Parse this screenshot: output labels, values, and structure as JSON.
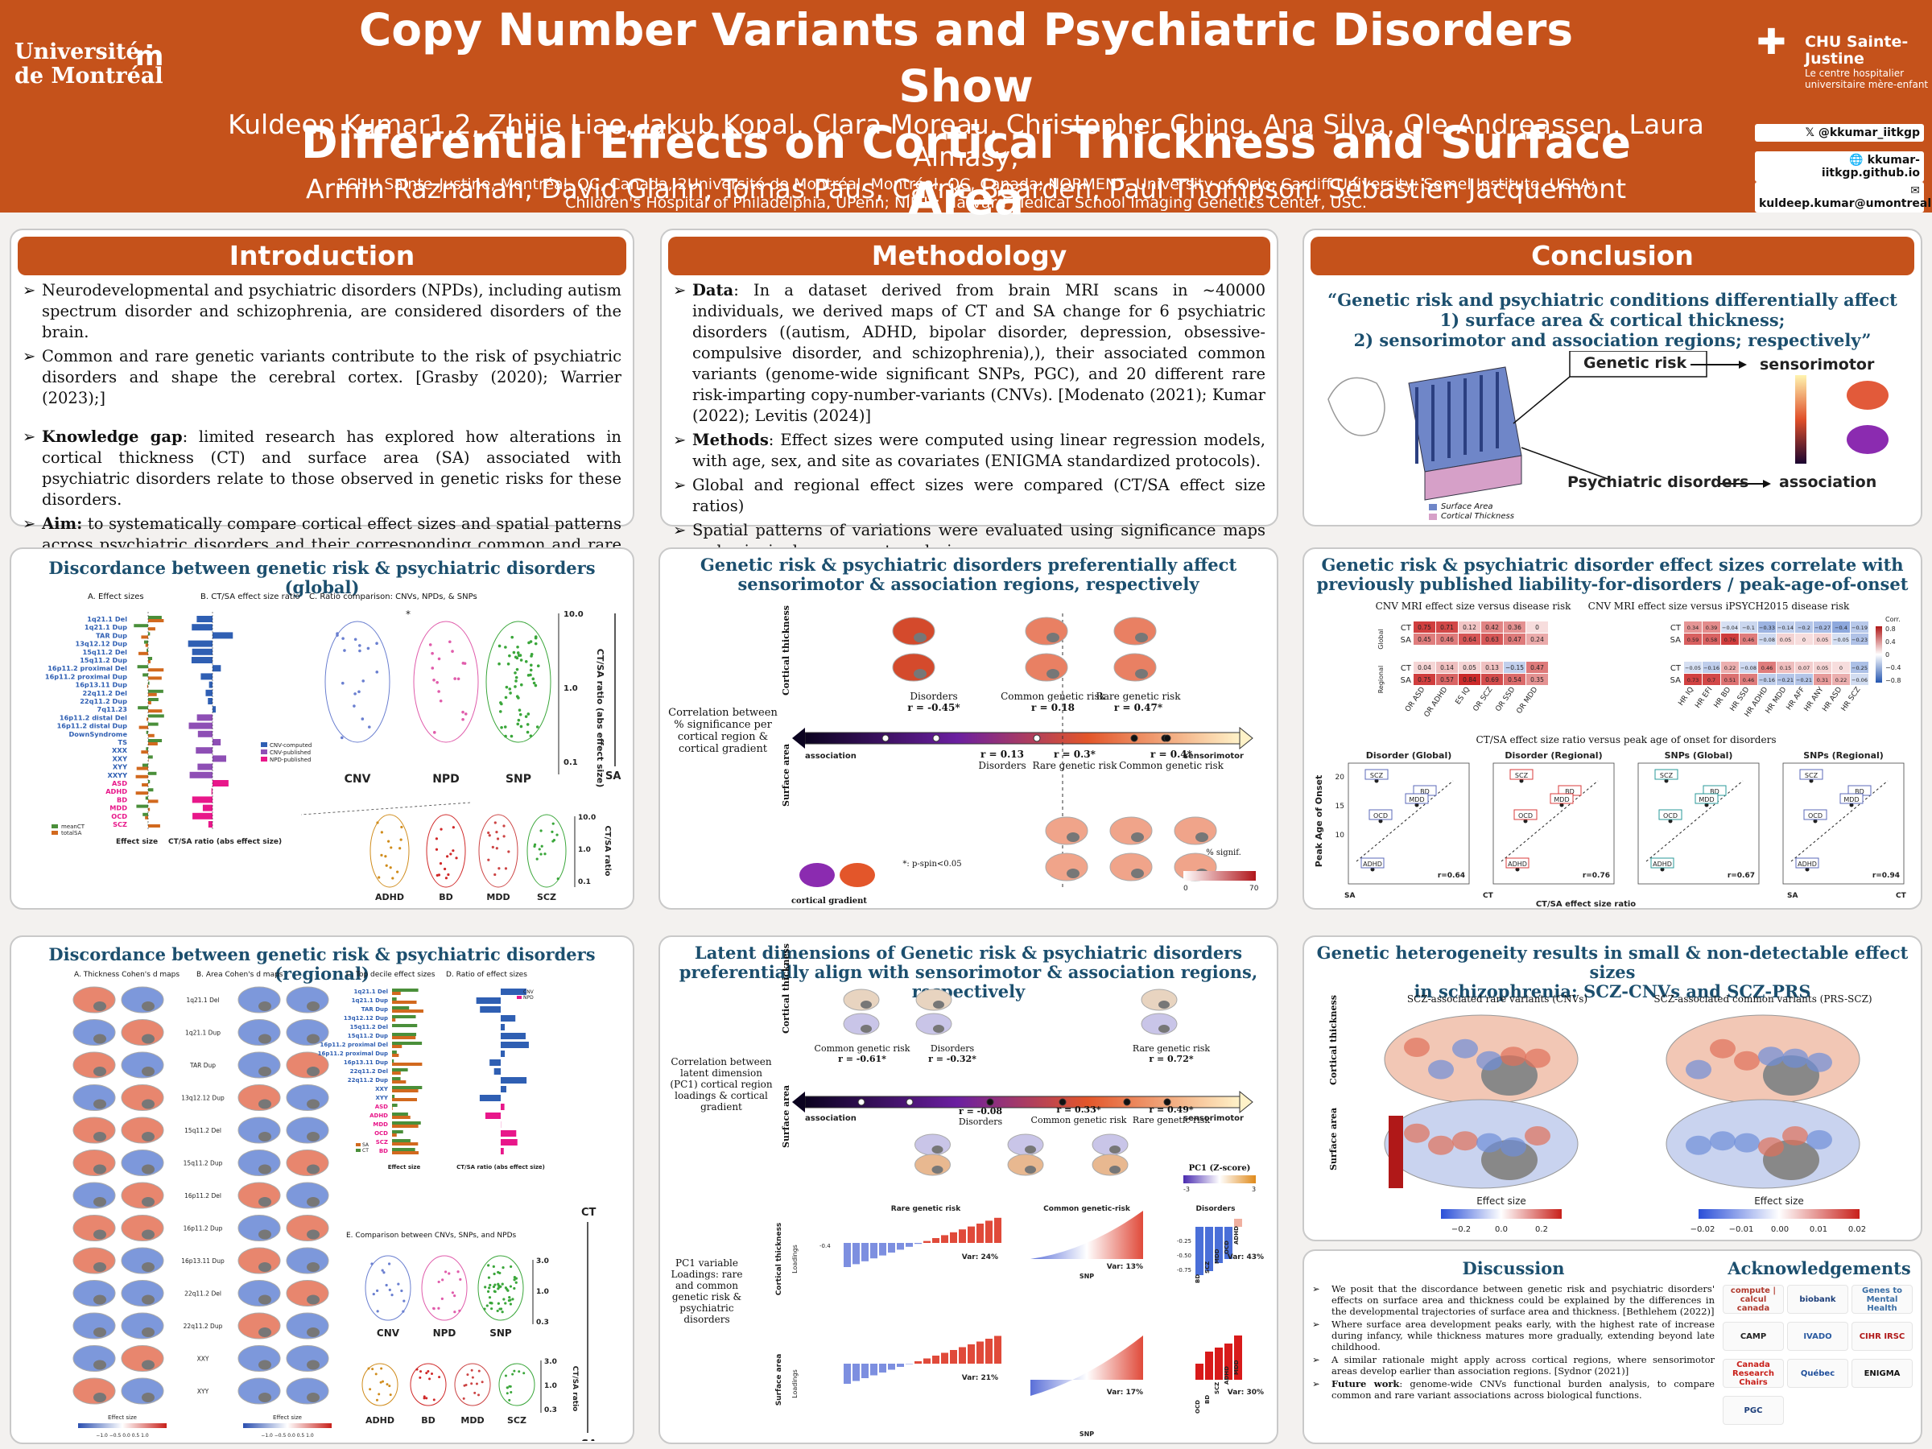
{
  "header": {
    "title_line1": "Copy Number Variants and Psychiatric Disorders Show",
    "title_line2": "Differential Effects on Cortical Thickness and Surface Area",
    "authors_line1": "Kuldeep Kumar1,2, Zhijie Liao, Jakub Kopal, Clara Moreau, Christopher Ching, Ana Silva, Ole Andreassen, Laura Almasy,",
    "authors_line2": "Armin Raznahan, David Glahn, Tomas Paus, Carrie Bearden, Paul Thompson, Sébastien Jacquemont",
    "affil_line1": "1CHU Sainte-Justine, Montréal, QC, Canada, 2Université de Montréal, Montréal, QC, Canada; NORMENT, University of Oslo; Cardiff University; Semel Institute, UCLA;",
    "affil_line2": "Children's Hospital of Philadelphia, UPenn; NIMH; Harvard Medical School Imaging Genetics Center, USC.",
    "logo_left_line1": "Université",
    "logo_left_line2": "de Montréal",
    "logo_right_name": "CHU Sainte-Justine",
    "logo_right_sub": "Le centre hospitalier universitaire mère-enfant",
    "twitter": "@kkumar_iitkgp",
    "website": "kkumar-iitkgp.github.io",
    "email": "kuldeep.kumar@umontreal.ca"
  },
  "introduction": {
    "title": "Introduction",
    "b1": "Neurodevelopmental and psychiatric disorders (NPDs), including autism spectrum disorder and schizophrenia, are considered disorders of the brain.",
    "b2": "Common and rare genetic variants contribute to the risk of psychiatric disorders and shape the cerebral cortex. [Grasby (2020); Warrier (2023);]",
    "b3_bold": "Knowledge gap",
    "b3": ": limited research has explored how alterations in cortical thickness (CT) and surface area (SA) associated with psychiatric disorders relate to those observed in genetic risks for these disorders.",
    "b4_bold": "Aim:",
    "b4": " to systematically compare cortical effect sizes and spatial patterns across psychiatric disorders and their corresponding common and rare genetic risks."
  },
  "methodology": {
    "title": "Methodology",
    "b1_bold": "Data",
    "b1": ": In a dataset derived from brain MRI scans in ~40000 individuals, we derived maps of CT and SA change for 6 psychiatric disorders ((autism, ADHD, bipolar disorder, depression, obsessive-compulsive disorder, and schizophrenia),), their associated common variants (genome-wide significant SNPs, PGC), and 20 different rare risk-imparting copy-number-variants (CNVs).  [Modenato (2021); Kumar (2022); Levitis (2024)]",
    "b2_bold": "Methods",
    "b2": ": Effect sizes were computed using linear regression models, with age, sex, and site as covariates (ENIGMA standardized protocols).",
    "b3": "Global and regional effect sizes were compared (CT/SA effect size ratios)",
    "b4": "Spatial patterns of variations were evaluated using significance maps and principal component analysis."
  },
  "conclusion": {
    "title": "Conclusion",
    "quote1": "“Genetic risk and psychiatric conditions differentially affect",
    "quote2": "1) surface area & cortical thickness;",
    "quote3": "2) sensorimotor and association regions; respectively”",
    "genetic_risk": "Genetic risk",
    "sensorimotor": "sensorimotor",
    "psych": "Psychiatric disorders",
    "association": "association",
    "surface_area": "Surface Area",
    "cortical_thickness": "Cortical Thickness"
  },
  "global": {
    "title": "Discordance between genetic risk & psychiatric disorders (global)",
    "label_a": "A. Effect sizes",
    "label_b": "B. CT/SA effect size ratio",
    "label_c": "C. Ratio comparison: CNVs, NPDs, & SNPs",
    "xlabel_a": "Effect size",
    "xlabel_b": "CT/SA ratio (abs effect size)",
    "legend_a1": "meanCT",
    "legend_a2": "totalSA",
    "legend_b1": "CNV-computed",
    "legend_b2": "CNV-published",
    "legend_b3": "NPD-published",
    "groups": [
      "CNV",
      "NPD",
      "SNP"
    ],
    "disorders": [
      "ADHD",
      "BD",
      "MDD",
      "SCZ"
    ],
    "yaxis": "CT/SA ratio (abs effect size)",
    "yaxis2": "CT/SA ratio",
    "ct": "CT",
    "sa": "SA",
    "ticks": [
      "10.0",
      "1.0",
      "0.1"
    ],
    "ticks2": [
      "10.0",
      "1.0",
      "0.1"
    ],
    "star": "*"
  },
  "cnv_names": [
    "1q21.1 Del",
    "1q21.1 Dup",
    "TAR Dup",
    "13q12.12 Dup",
    "15q11.2 Del",
    "15q11.2 Dup",
    "16p11.2 proximal Del",
    "16p11.2 proximal Dup",
    "16p13.11 Dup",
    "22q11.2 Del",
    "22q11.2 Dup",
    "7q11.23",
    "16p11.2 distal Del",
    "16p11.2 distal Dup",
    "DownSyndrome",
    "TS",
    "XXX",
    "XXY",
    "XYY",
    "XXYY",
    "ASD",
    "ADHD",
    "BD",
    "MDD",
    "OCD",
    "SCZ"
  ],
  "gradient": {
    "title1": "Genetic risk & psychiatric disorders preferentially affect",
    "title2": "sensorimotor & association regions, respectively",
    "side_ct": "Cortical thickness",
    "side_sa": "Surface area",
    "desc": "Correlation between % significance per cortical region & cortical gradient",
    "assoc": "association",
    "senso": "sensorimotor",
    "ct_disorders": "Disorders",
    "ct_disorders_r": "r = -0.45*",
    "ct_common": "Common genetic risk",
    "ct_common_r": "r = 0.18",
    "ct_rare": "Rare genetic risk",
    "ct_rare_r": "r = 0.47*",
    "sa_disorders_r": "r = 0.13",
    "sa_disorders": "Disorders",
    "sa_rare_r": "r = 0.3*",
    "sa_rare": "Rare genetic risk",
    "sa_common_r": "r = 0.4*",
    "sa_common": "Common genetic risk",
    "note": "*: p-spin<0.05",
    "cortical_gradient": "cortical gradient",
    "signif": "% signif.",
    "tick0": "0",
    "tick70": "70"
  },
  "correlate": {
    "title1": "Genetic risk & psychiatric disorder effect sizes correlate with",
    "title2": "previously published liability-for-disorders / peak-age-of-onset",
    "sub_left": "CNV MRI effect size versus disease risk",
    "sub_right": "CNV MRI effect size versus iPSYCH2015 disease risk",
    "global": "Global",
    "regional": "Regional",
    "ct": "CT",
    "sa": "SA",
    "cols_left": [
      "OR ASD",
      "OR ADHD",
      "ES IQ",
      "OR SCZ",
      "OR SSD",
      "OR MDD"
    ],
    "cols_right": [
      "HR IQ",
      "HR EFI",
      "HR BD",
      "HR SSD",
      "HR ADHD",
      "HR MDD",
      "HR AFF",
      "HR ANY",
      "HR ASD",
      "HR SCZ"
    ],
    "left_g_ct": [
      "0.75",
      "0.71",
      "0.12",
      "0.42",
      "0.36",
      "0"
    ],
    "left_g_sa": [
      "0.45",
      "0.46",
      "0.64",
      "0.63",
      "0.47",
      "0.24"
    ],
    "left_r_ct": [
      "0.04",
      "0.14",
      "0.05",
      "0.13",
      "−0.15",
      "0.47"
    ],
    "left_r_sa": [
      "0.75",
      "0.57",
      "0.84",
      "0.69",
      "0.54",
      "0.35"
    ],
    "right_g_ct": [
      "0.34",
      "0.39",
      "−0.04",
      "−0.1",
      "−0.33",
      "−0.14",
      "−0.2",
      "−0.27",
      "−0.4",
      "−0.19"
    ],
    "right_g_sa": [
      "0.59",
      "0.58",
      "0.76",
      "0.46",
      "−0.08",
      "0.05",
      "0",
      "0.05",
      "−0.05",
      "−0.23"
    ],
    "right_r_ct": [
      "−0.05",
      "−0.16",
      "0.22",
      "−0.08",
      "0.46",
      "0.15",
      "0.07",
      "0.05",
      "0",
      "−0.25"
    ],
    "right_r_sa": [
      "0.73",
      "0.7",
      "0.51",
      "0.46",
      "−0.16",
      "−0.21",
      "−0.21",
      "0.31",
      "0.22",
      "−0.06"
    ],
    "corr": "Corr.",
    "corr_ticks": [
      "0.8",
      "0.4",
      "0",
      "−0.4",
      "−0.8"
    ],
    "subtitle2": "CT/SA effect size ratio versus peak age of onset for disorders",
    "panels": [
      "Disorder (Global)",
      "Disorder (Regional)",
      "SNPs (Global)",
      "SNPs (Regional)"
    ],
    "rvals": [
      "r=0.64",
      "r=0.76",
      "r=0.67",
      "r=0.94"
    ],
    "ylabel": "Peak Age of Onset",
    "xlabel": "CT/SA effect size ratio",
    "yticks": [
      "20",
      "15",
      "10"
    ],
    "sa_end": "SA",
    "ct_end": "CT",
    "pt_labels": [
      "SCZ",
      "BD",
      "MDD",
      "OCD",
      "ADHD"
    ]
  },
  "regional": {
    "title": "Discordance between genetic risk & psychiatric disorders (regional)",
    "label_a": "A. Thickness Cohen's d maps",
    "label_b": "B. Area Cohen's d maps",
    "label_c": "C. Top decile effect sizes",
    "label_d": "D. Ratio of effect sizes",
    "label_e": "E. Comparison between CNVs, SNPs, and NPDs",
    "rows": [
      "1q21.1 Del",
      "1q21.1 Dup",
      "TAR Dup",
      "13q12.12 Dup",
      "15q11.2 Del",
      "15q11.2 Dup",
      "16p11.2 Del",
      "16p11.2 Dup",
      "16p13.11 Dup",
      "22q11.2 Del",
      "22q11.2 Dup",
      "XXY",
      "XYY"
    ],
    "effect_size": "Effect size",
    "ratio_label": "CT/SA ratio (abs effect size)",
    "legend_sa": "SA",
    "legend_ct": "CT",
    "legend_cnv": "CNV",
    "legend_npd": "NPD",
    "groups": [
      "CNV",
      "NPD",
      "SNP"
    ],
    "disorders": [
      "ADHD",
      "BD",
      "MDD",
      "SCZ"
    ],
    "ticks": [
      "3.0",
      "1.0",
      "0.3"
    ],
    "ct": "CT",
    "sa": "SA",
    "axis_r": "CT/SA ratio",
    "scale_ticks": "−1.0 −0.5 0.0 0.5 1.0"
  },
  "latent": {
    "title1": "Latent dimensions of Genetic risk & psychiatric disorders",
    "title2": "preferentially align with sensorimotor & association regions, respectively",
    "side_ct": "Cortical thickness",
    "side_sa": "Surface area",
    "desc": "Correlation between latent dimension (PC1) cortical region loadings & cortical gradient",
    "assoc": "association",
    "senso": "sensorimotor",
    "ct_common": "Common genetic risk",
    "ct_common_r": "r = -0.61*",
    "ct_disorders": "Disorders",
    "ct_disorders_r": "r = -0.32*",
    "ct_rare": "Rare genetic risk",
    "ct_rare_r": "r = 0.72*",
    "sa_disorders_r": "r = -0.08",
    "sa_disorders": "Disorders",
    "sa_common_r": "r = 0.33*",
    "sa_common": "Common genetic risk",
    "sa_rare_r": "r = 0.49*",
    "sa_rare": "Rare genetic risk",
    "pc1": "PC1 (Z-score)",
    "pc_tick_l": "-3",
    "pc_tick_r": "3",
    "pc_desc": "PC1 variable Loadings: rare and common genetic risk & psychiatric disorders",
    "rare": "Rare genetic risk",
    "common": "Common genetic-risk",
    "disorders": "Disorders",
    "loadings": "Loadings",
    "snp": "SNP",
    "var_ct": [
      "Var: 24%",
      "Var: 13%",
      "Var: 43%"
    ],
    "var_sa": [
      "Var: 21%",
      "Var: 17%",
      "Var: 30%"
    ],
    "ct_tick": "-0.4",
    "dis_ticks": [
      "-0.25",
      "-0.50",
      "-0.75"
    ],
    "dis_labels": [
      "BD",
      "SCZ",
      "MDD",
      "OCD",
      "ADHD"
    ],
    "dis_labels_sa": [
      "OCD",
      "BD",
      "SCZ",
      "ADHD",
      "MDD"
    ]
  },
  "hetero": {
    "title1": "Genetic heterogeneity results in small & non-detectable effect sizes",
    "title2": "in schizophrenia: SCZ-CNVs and SCZ-PRS",
    "left": "SCZ-associated rare variants (CNVs)",
    "right": "SCZ-associated common variants (PRS-SCZ)",
    "side_ct": "Cortical thickness",
    "side_sa": "Surface area",
    "effect_size": "Effect size",
    "ticks_left": [
      "−0.2",
      "0.0",
      "0.2"
    ],
    "ticks_right": [
      "−0.02",
      "−0.01",
      "0.00",
      "0.01",
      "0.02"
    ]
  },
  "discussion": {
    "title": "Discussion",
    "b1": "We posit that the discordance between genetic risk and psychiatric disorders' effects on surface area and thickness could be explained by the differences in the developmental trajectories of surface area and thickness. [Bethlehem (2022)]",
    "b2": "Where surface area development peaks early, with the highest rate of increase during infancy, while thickness matures more gradually, extending beyond late childhood.",
    "b3": "A similar rationale might apply across cortical regions, where sensorimotor areas develop earlier than association regions. [Sydnor (2021)]",
    "b4_bold": "Future work",
    "b4": ": genome-wide CNVs functional burden analysis, to compare common and rare variant associations across biological functions."
  },
  "ack": {
    "title": "Acknowledgements",
    "logos": [
      "compute | calcul canada",
      "biobank",
      "Genes to Mental Health",
      "CAMP",
      "IVADO",
      "CIHR IRSC",
      "Canada Research Chairs",
      "Québec",
      "ENIGMA",
      "PGC"
    ]
  },
  "colors": {
    "orange": "#c5521b",
    "navy": "#1c4f6e",
    "ct": "#4a8f3a",
    "sa": "#d2691e",
    "cnvblue": "#2f5fb3",
    "npdpink": "#e8178a",
    "purple": "#8e4fb5"
  }
}
